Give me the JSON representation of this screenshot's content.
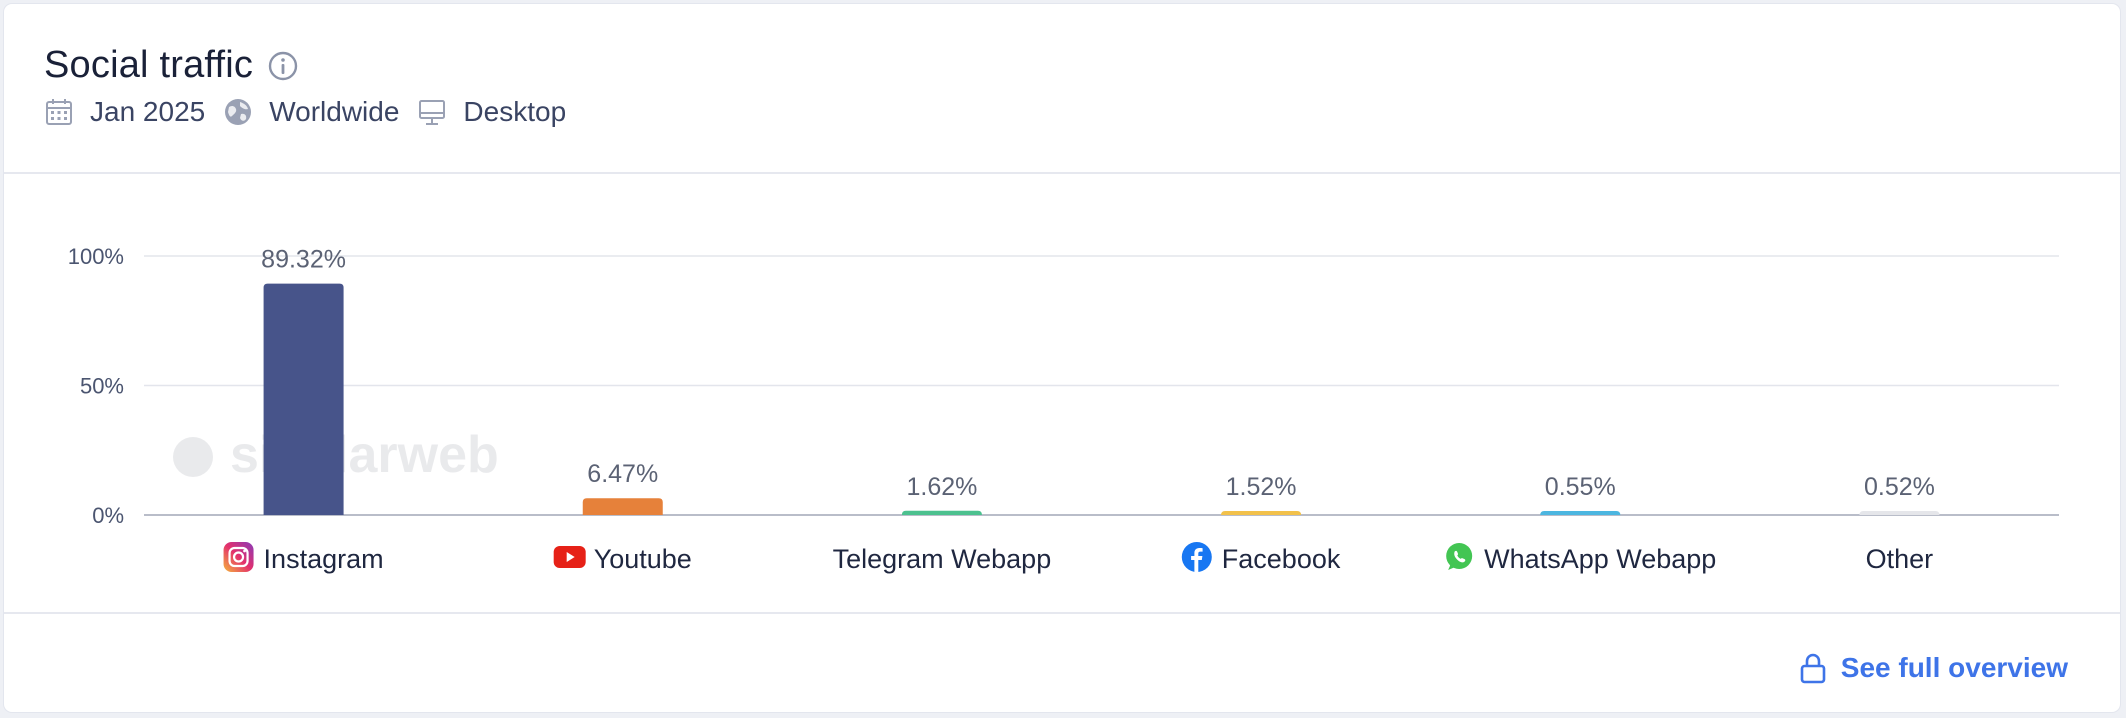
{
  "header": {
    "title": "Social traffic",
    "date": "Jan 2025",
    "region": "Worldwide",
    "device": "Desktop"
  },
  "footer": {
    "overview_label": "See full overview"
  },
  "watermark": "similarweb",
  "colors": {
    "Instagram": "#47548a",
    "Youtube": "#e6813a",
    "Telegram Webapp": "#4cc18f",
    "Facebook": "#f2c14a",
    "WhatsApp Webapp": "#4cb6e0",
    "Other": "#e5e6ea",
    "accent": "#3e74e8"
  },
  "chart_data": {
    "type": "bar",
    "title": "Social traffic",
    "categories": [
      "Instagram",
      "Youtube",
      "Telegram Webapp",
      "Facebook",
      "WhatsApp Webapp",
      "Other"
    ],
    "values": [
      89.32,
      6.47,
      1.62,
      1.52,
      0.55,
      0.52
    ],
    "value_labels": [
      "89.32%",
      "6.47%",
      "1.62%",
      "1.52%",
      "0.55%",
      "0.52%"
    ],
    "icons": [
      "instagram-icon",
      "youtube-icon",
      "",
      "facebook-icon",
      "whatsapp-icon",
      ""
    ],
    "yticks": [
      0,
      50,
      100
    ],
    "ytick_labels": [
      "0%",
      "50%",
      "100%"
    ],
    "ylim": [
      0,
      100
    ],
    "xlabel": "",
    "ylabel": "",
    "grid": true
  }
}
